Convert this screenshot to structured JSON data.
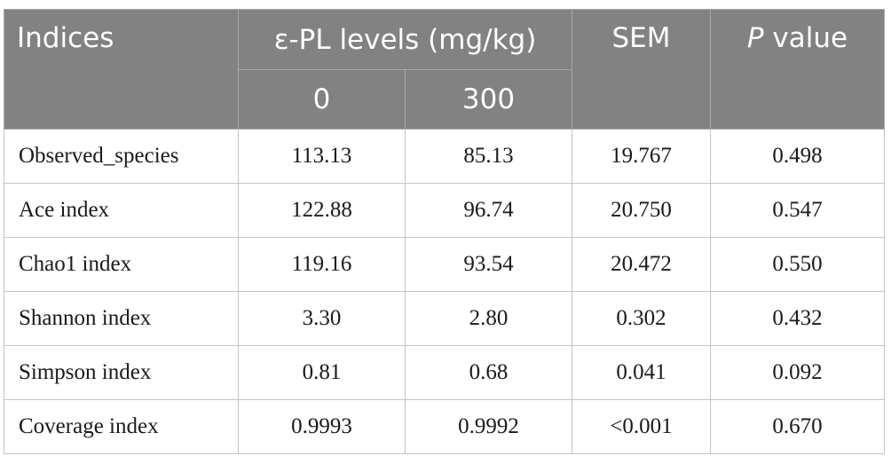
{
  "table": {
    "header": {
      "indices": "Indices",
      "group": "ε-PL levels (mg/kg)",
      "level_0": "0",
      "level_300": "300",
      "sem": "SEM",
      "p_italic": "P",
      "p_rest": " value"
    },
    "rows": [
      {
        "label": "Observed_species",
        "v0": "113.13",
        "v300": "85.13",
        "sem": "19.767",
        "p": "0.498"
      },
      {
        "label": "Ace index",
        "v0": "122.88",
        "v300": "96.74",
        "sem": "20.750",
        "p": "0.547"
      },
      {
        "label": "Chao1 index",
        "v0": "119.16",
        "v300": "93.54",
        "sem": "20.472",
        "p": "0.550"
      },
      {
        "label": "Shannon index",
        "v0": "3.30",
        "v300": "2.80",
        "sem": "0.302",
        "p": "0.432"
      },
      {
        "label": "Simpson index",
        "v0": "0.81",
        "v300": "0.68",
        "sem": "0.041",
        "p": "0.092"
      },
      {
        "label": "Coverage index",
        "v0": "0.9993",
        "v300": "0.9992",
        "sem": "<0.001",
        "p": "0.670"
      }
    ]
  }
}
